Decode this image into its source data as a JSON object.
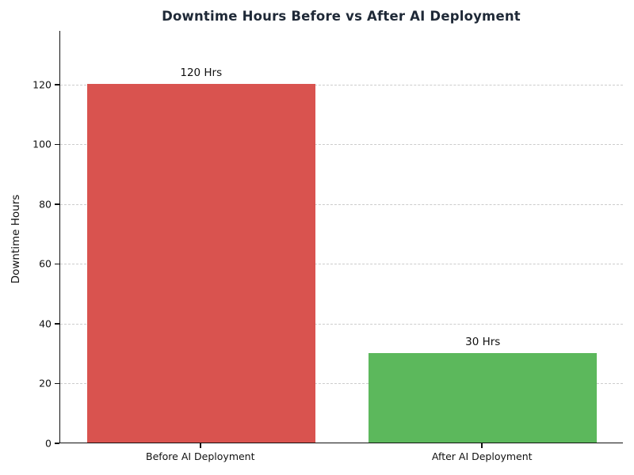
{
  "chart_data": {
    "type": "bar",
    "title": "Downtime Hours Before vs After AI Deployment",
    "categories": [
      "Before AI Deployment",
      "After AI Deployment"
    ],
    "values": [
      120,
      30
    ],
    "bar_value_labels": [
      "120 Hrs",
      "30 Hrs"
    ],
    "bar_colors": [
      "#d9534f",
      "#5cb85c"
    ],
    "xlabel": "",
    "ylabel": "Downtime Hours",
    "ylim": [
      0,
      138
    ],
    "yticks": [
      0,
      20,
      40,
      60,
      80,
      100,
      120
    ],
    "grid": "horizontal-dashed",
    "gridline_color": "#cccccc",
    "legend": "none",
    "background_color": "#ffffff",
    "title_color": "#1f2937"
  }
}
